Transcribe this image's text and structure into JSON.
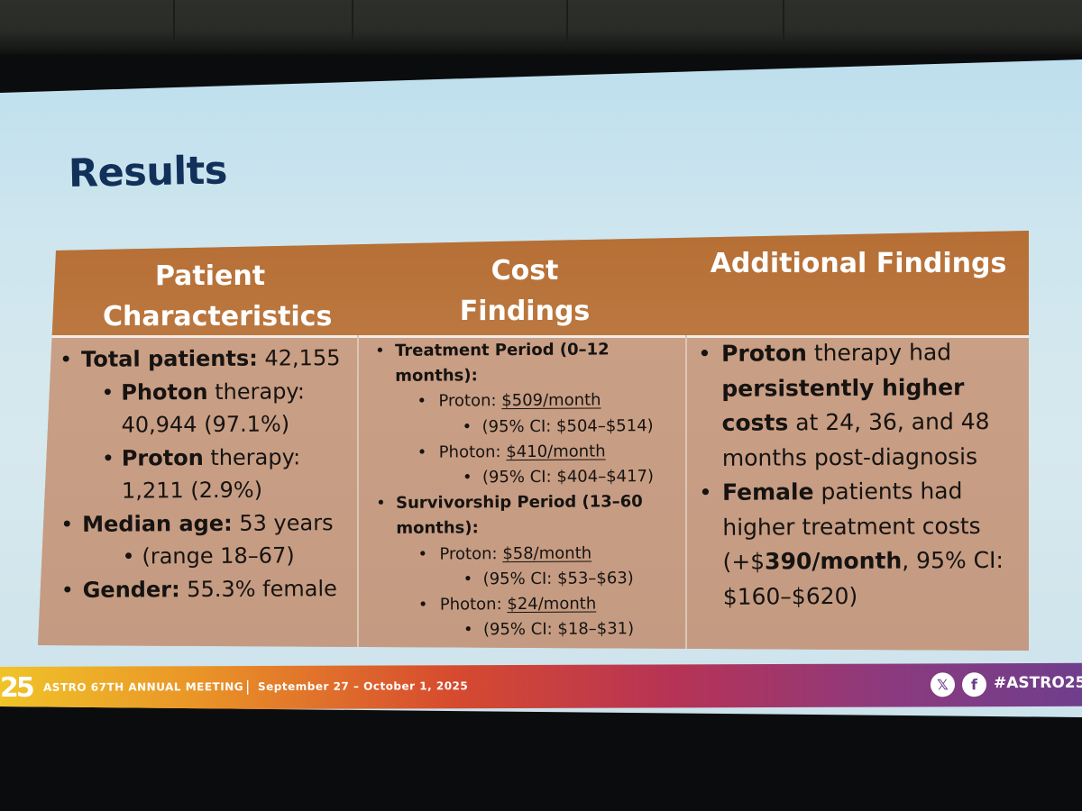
{
  "slide": {
    "title": "Results",
    "columns": [
      {
        "header": [
          "Patient",
          "Characteristics"
        ]
      },
      {
        "header": [
          "Cost",
          "Findings"
        ]
      },
      {
        "header": [
          "Additional Findings"
        ]
      }
    ],
    "patient_characteristics": [
      {
        "level": 0,
        "bold": "Total patients:",
        "text": " 42,155"
      },
      {
        "level": 1,
        "bold": "Photon",
        "text": " therapy:"
      },
      {
        "level": 1,
        "bold": "",
        "text": "40,944 (97.1%)",
        "nobullet": true
      },
      {
        "level": 1,
        "bold": "Proton",
        "text": " therapy:"
      },
      {
        "level": 1,
        "bold": "",
        "text": "1,211 (2.9%)",
        "nobullet": true
      },
      {
        "level": 0,
        "bold": "Median age:",
        "text": " 53 years"
      },
      {
        "level": 2,
        "bold": "",
        "text": "(range 18–67)"
      },
      {
        "level": 0,
        "bold": "Gender:",
        "text": " 55.3% female"
      }
    ],
    "cost_findings": [
      {
        "level": 0,
        "bold": "Treatment Period (0–12",
        "text": ""
      },
      {
        "level": 0,
        "bold": "months):",
        "text": "",
        "nobullet": true
      },
      {
        "level": 1,
        "bold": "",
        "text": "Proton: ",
        "underline": "$509/month"
      },
      {
        "level": 2,
        "bold": "",
        "text": "(95% CI: $504–$514)"
      },
      {
        "level": 1,
        "bold": "",
        "text": "Photon: ",
        "underline": "$410/month"
      },
      {
        "level": 2,
        "bold": "",
        "text": "(95% CI: $404–$417)"
      },
      {
        "level": 0,
        "bold": "Survivorship Period (13–60",
        "text": ""
      },
      {
        "level": 0,
        "bold": "months):",
        "text": "",
        "nobullet": true
      },
      {
        "level": 1,
        "bold": "",
        "text": "Proton: ",
        "underline": "$58/month"
      },
      {
        "level": 2,
        "bold": "",
        "text": "(95% CI: $53–$63)"
      },
      {
        "level": 1,
        "bold": "",
        "text": "Photon: ",
        "underline": "$24/month"
      },
      {
        "level": 2,
        "bold": "",
        "text": "(95% CI: $18–$31)"
      }
    ],
    "additional_findings": [
      {
        "segments": [
          {
            "b": "Proton"
          },
          {
            "t": " therapy had"
          }
        ]
      },
      {
        "segments": [
          {
            "b": "persistently higher"
          }
        ],
        "nobullet": true
      },
      {
        "segments": [
          {
            "b": "costs"
          },
          {
            "t": " at 24, 36, and 48"
          }
        ],
        "nobullet": true
      },
      {
        "segments": [
          {
            "t": "months post-diagnosis"
          }
        ],
        "nobullet": true
      },
      {
        "segments": [
          {
            "b": "Female"
          },
          {
            "t": " patients had"
          }
        ]
      },
      {
        "segments": [
          {
            "t": "higher treatment costs"
          }
        ],
        "nobullet": true
      },
      {
        "segments": [
          {
            "t": "(+$"
          },
          {
            "b": "390/month"
          },
          {
            "t": ", 95% CI:"
          }
        ],
        "nobullet": true
      },
      {
        "segments": [
          {
            "t": "$160–$620)"
          }
        ],
        "nobullet": true
      }
    ]
  },
  "footer": {
    "logo": "25",
    "meeting": "ASTRO 67TH ANNUAL MEETING",
    "separator": "|",
    "dates": "September 27 – October 1, 2025",
    "x_icon": "𝕏",
    "facebook_icon": "f",
    "hashtag": "#ASTRO25"
  },
  "colors": {
    "header_bg": "#b66e34",
    "body_bg": "#c89e84",
    "title": "#11305a",
    "slide_bg": "#cfe6ef"
  }
}
